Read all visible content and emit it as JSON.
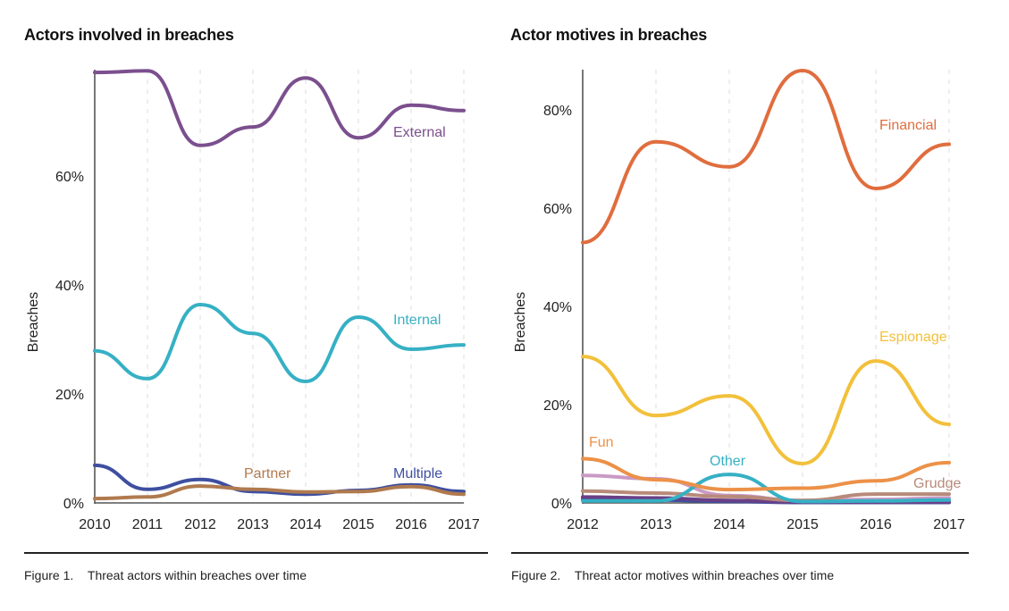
{
  "chart_data": [
    {
      "type": "line",
      "title": "Actors involved in breaches",
      "caption_number": "Figure 1.",
      "caption_text": "Threat actors within breaches over time",
      "xlabel": "",
      "ylabel": "Breaches",
      "x": [
        "2010",
        "2011",
        "2012",
        "2013",
        "2014",
        "2015",
        "2016",
        "2017"
      ],
      "yticks": [
        0,
        20,
        40,
        60
      ],
      "ytick_labels": [
        "0%",
        "20%",
        "40%",
        "60%"
      ],
      "ylim": [
        0,
        79.5
      ],
      "grid": "vertical dashed",
      "series": [
        {
          "name": "External",
          "color": "#7b4f8e",
          "values": [
            79,
            79.3,
            65.6,
            69,
            78,
            67,
            73,
            72
          ]
        },
        {
          "name": "Internal",
          "color": "#36b0c4",
          "values": [
            27.9,
            22.8,
            36.4,
            31.1,
            22.3,
            34.1,
            28.2,
            29
          ]
        },
        {
          "name": "Partner",
          "color": "#b07a4e",
          "values": [
            0.8,
            1.1,
            3.1,
            2.5,
            2.0,
            2.1,
            3.0,
            1.6
          ]
        },
        {
          "name": "Multiple",
          "color": "#3e4fa0",
          "values": [
            6.9,
            2.5,
            4.3,
            2.1,
            1.6,
            2.3,
            3.3,
            2.1
          ]
        }
      ]
    },
    {
      "type": "line",
      "title": "Actor motives in breaches",
      "caption_number": "Figure 2.",
      "caption_text": "Threat actor motives within breaches over time",
      "xlabel": "",
      "ylabel": "Breaches",
      "x": [
        "2012",
        "2013",
        "2014",
        "2015",
        "2016",
        "2017"
      ],
      "yticks": [
        0,
        20,
        40,
        60,
        80
      ],
      "ytick_labels": [
        "0%",
        "20%",
        "40%",
        "60%",
        "80%"
      ],
      "ylim": [
        0,
        88.5
      ],
      "grid": "vertical dashed",
      "series": [
        {
          "name": "Financial",
          "color": "#e06d3e",
          "values": [
            53,
            73.5,
            68.4,
            88,
            64,
            73
          ]
        },
        {
          "name": "Espionage",
          "color": "#f2c03b",
          "values": [
            29.8,
            17.8,
            21.8,
            8,
            28.9,
            16
          ]
        },
        {
          "name": "Fun",
          "color": "#ec9148",
          "values": [
            9,
            4.7,
            2.7,
            3,
            4.5,
            8.2
          ]
        },
        {
          "name": "Other",
          "color": "#36b0c4",
          "values": [
            0.4,
            0.4,
            5.8,
            0.3,
            0.4,
            0.6
          ]
        },
        {
          "name": "Grudge",
          "color": "#b88a7a",
          "values": [
            2.4,
            2.0,
            1.3,
            0.5,
            1.8,
            1.8
          ]
        },
        {
          "name": "",
          "color": "#c99ac4",
          "values": [
            5.6,
            4.9,
            1.5,
            0.5,
            0.7,
            1.0
          ]
        },
        {
          "name": "",
          "color": "#6a3f86",
          "values": [
            1.2,
            1.0,
            0.5,
            0.2,
            0.2,
            0.2
          ]
        },
        {
          "name": "",
          "color": "#3e4fa0",
          "values": [
            0.8,
            0.6,
            0.3,
            0.1,
            0.1,
            0.1
          ]
        }
      ]
    }
  ]
}
